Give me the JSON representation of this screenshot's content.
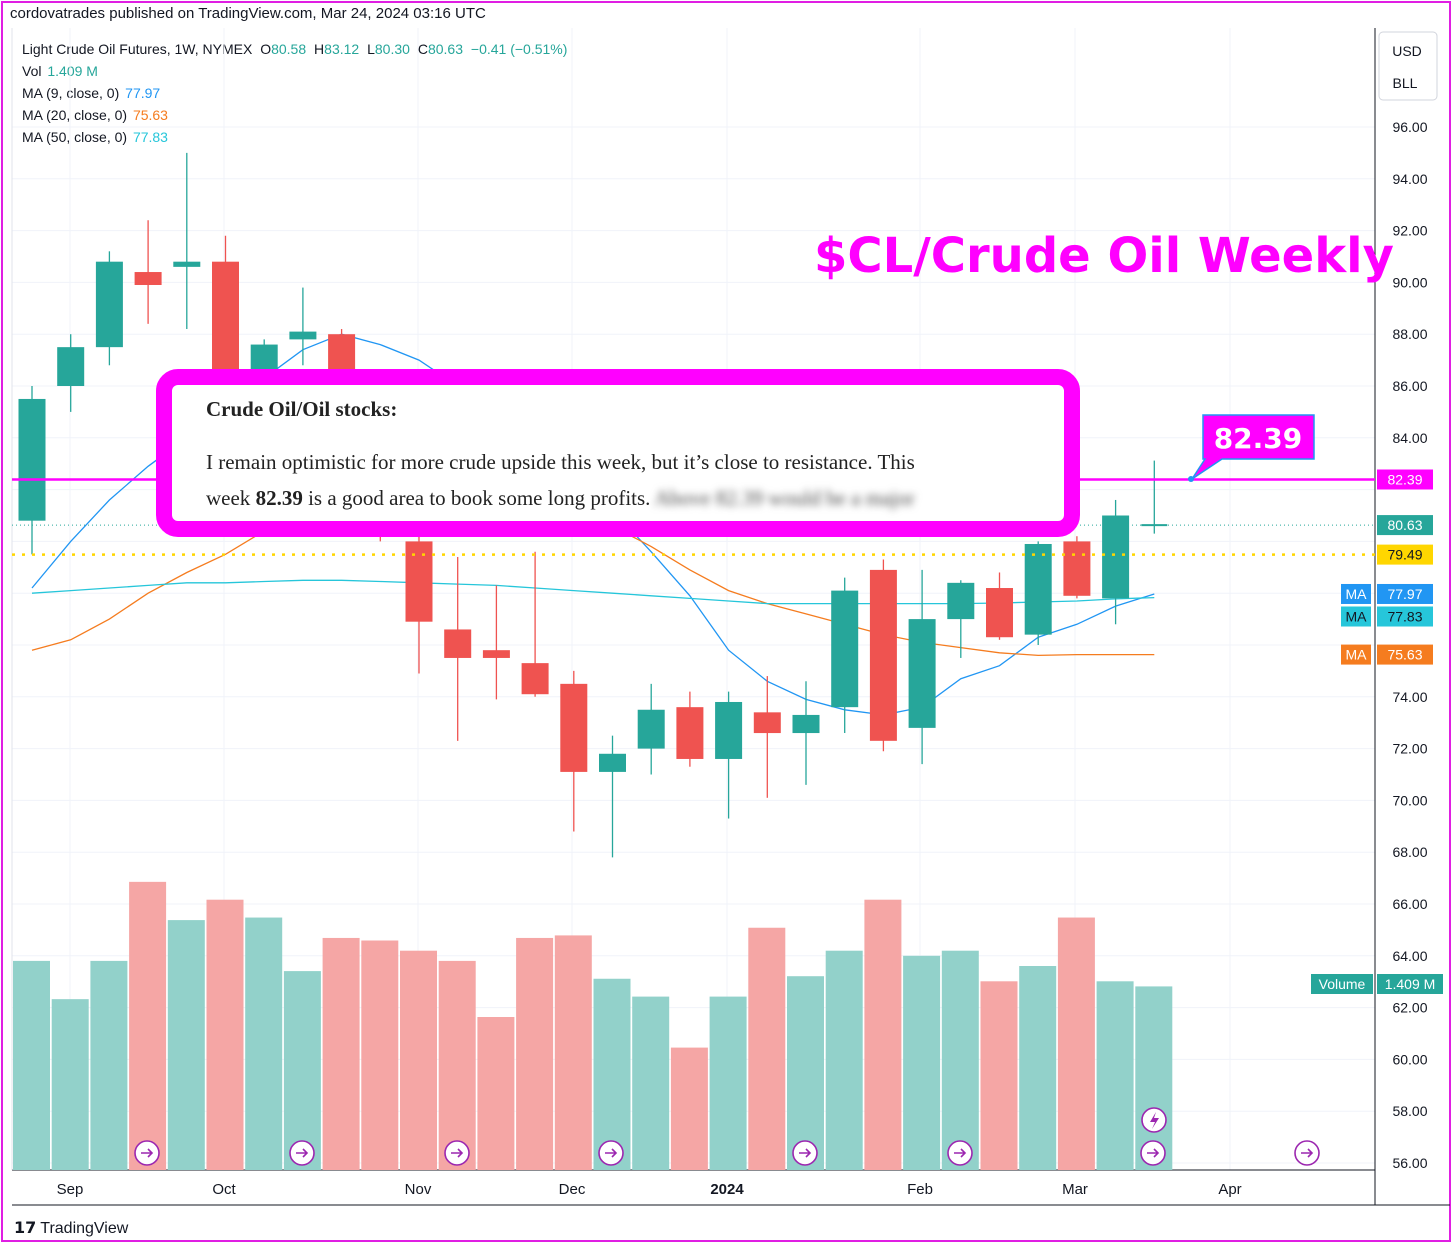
{
  "header": {
    "published": "cordovatrades published on TradingView.com, Mar 24, 2024 03:16 UTC"
  },
  "legend": {
    "symbol": "Light Crude Oil Futures, 1W, NYMEX",
    "o_label": "O",
    "o": "80.58",
    "h_label": "H",
    "h": "83.12",
    "l_label": "L",
    "l": "80.30",
    "c_label": "C",
    "c": "80.63",
    "chg": "−0.41 (−0.51%)",
    "vol_label": "Vol",
    "vol": "1.409 M",
    "ma9_label": "MA (9, close, 0)",
    "ma9": "77.97",
    "ma20_label": "MA (20, close, 0)",
    "ma20": "75.63",
    "ma50_label": "MA (50, close, 0)",
    "ma50": "77.83"
  },
  "annotation": {
    "big_title": "$CL/Crude Oil Weekly",
    "callout_title": "Crude Oil/Oil stocks:",
    "callout_body_1": "I remain optimistic for more crude upside this week, but it’s close to resistance.  This",
    "callout_body_2a": "week ",
    "callout_body_2b": "82.39",
    "callout_body_2c": " is a good area to book some long profits.",
    "callout_blurred": "Above 82.39 would be a major",
    "price_tag": "82.39"
  },
  "footer": {
    "logo": "TradingView"
  },
  "colors": {
    "up": "#26a69a",
    "down": "#ef5350",
    "vol_up": "#92d1ca",
    "vol_down": "#f5a6a5",
    "ma9": "#2196f3",
    "ma20": "#f57c1f",
    "ma50": "#26c6da",
    "magenta": "#ff00ff",
    "yellow": "#ffd600"
  },
  "chart_data": {
    "type": "candlestick",
    "title": "$CL/Crude Oil Weekly",
    "symbol": "Light Crude Oil Futures, 1W, NYMEX",
    "currency": "USD",
    "unit": "BLL",
    "ylim": [
      55.5,
      97.5
    ],
    "y_ticks": [
      "96.00",
      "94.00",
      "92.00",
      "90.00",
      "88.00",
      "86.00",
      "84.00",
      "74.00",
      "72.00",
      "70.00",
      "68.00",
      "66.00",
      "64.00",
      "62.00",
      "60.00",
      "58.00",
      "56.00"
    ],
    "x_labels": [
      "Sep",
      "Oct",
      "Nov",
      "Dec",
      "2024",
      "Feb",
      "Mar",
      "Apr"
    ],
    "candles": [
      {
        "o": 80.8,
        "h": 86.0,
        "l": 79.5,
        "c": 85.5
      },
      {
        "o": 86.0,
        "h": 88.0,
        "l": 85.0,
        "c": 87.5
      },
      {
        "o": 87.5,
        "h": 91.2,
        "l": 86.8,
        "c": 90.8
      },
      {
        "o": 90.4,
        "h": 92.4,
        "l": 88.4,
        "c": 89.9
      },
      {
        "o": 90.6,
        "h": 95.0,
        "l": 88.2,
        "c": 90.8
      },
      {
        "o": 90.8,
        "h": 91.8,
        "l": 84.5,
        "c": 84.6
      },
      {
        "o": 84.8,
        "h": 87.8,
        "l": 84.5,
        "c": 87.6
      },
      {
        "o": 87.8,
        "h": 89.8,
        "l": 86.8,
        "c": 88.1
      },
      {
        "o": 88.0,
        "h": 88.2,
        "l": 84.0,
        "c": 84.5
      },
      {
        "o": 83.0,
        "h": 83.5,
        "l": 80.0,
        "c": 80.5
      },
      {
        "o": 80.0,
        "h": 80.5,
        "l": 74.9,
        "c": 76.9
      },
      {
        "o": 76.6,
        "h": 79.4,
        "l": 72.3,
        "c": 75.5
      },
      {
        "o": 75.8,
        "h": 78.3,
        "l": 73.9,
        "c": 75.5
      },
      {
        "o": 75.3,
        "h": 79.6,
        "l": 74.0,
        "c": 74.1
      },
      {
        "o": 74.5,
        "h": 75.0,
        "l": 68.8,
        "c": 71.1
      },
      {
        "o": 71.1,
        "h": 72.5,
        "l": 67.8,
        "c": 71.8
      },
      {
        "o": 72.0,
        "h": 74.5,
        "l": 71.0,
        "c": 73.5
      },
      {
        "o": 73.6,
        "h": 74.2,
        "l": 71.3,
        "c": 71.6
      },
      {
        "o": 71.6,
        "h": 74.2,
        "l": 69.3,
        "c": 73.8
      },
      {
        "o": 73.4,
        "h": 74.8,
        "l": 70.1,
        "c": 72.6
      },
      {
        "o": 72.6,
        "h": 74.6,
        "l": 70.6,
        "c": 73.3
      },
      {
        "o": 73.6,
        "h": 78.6,
        "l": 72.6,
        "c": 78.1
      },
      {
        "o": 78.9,
        "h": 79.3,
        "l": 71.9,
        "c": 72.3
      },
      {
        "o": 72.8,
        "h": 78.9,
        "l": 71.4,
        "c": 77.0
      },
      {
        "o": 77.0,
        "h": 78.5,
        "l": 75.5,
        "c": 78.4
      },
      {
        "o": 78.2,
        "h": 78.8,
        "l": 76.2,
        "c": 76.3
      },
      {
        "o": 76.4,
        "h": 80.0,
        "l": 76.0,
        "c": 79.9
      },
      {
        "o": 80.0,
        "h": 80.2,
        "l": 77.8,
        "c": 77.9
      },
      {
        "o": 77.8,
        "h": 81.6,
        "l": 76.8,
        "c": 81.0
      },
      {
        "o": 80.58,
        "h": 83.12,
        "l": 80.3,
        "c": 80.63
      }
    ],
    "volume_ratio": [
      0.82,
      0.67,
      0.82,
      1.13,
      0.98,
      1.06,
      0.99,
      0.78,
      0.91,
      0.9,
      0.86,
      0.82,
      0.6,
      0.91,
      0.92,
      0.75,
      0.68,
      0.48,
      0.68,
      0.95,
      0.76,
      0.86,
      1.06,
      0.84,
      0.86,
      0.74,
      0.8,
      0.99,
      0.74,
      0.72
    ],
    "ma_series": [
      {
        "name": "MA (9, close, 0)",
        "last": 77.97,
        "values": [
          78.2,
          80.0,
          81.6,
          82.9,
          84.0,
          85.2,
          86.3,
          87.4,
          88.0,
          87.6,
          87.0,
          86.0,
          85.2,
          84.0,
          82.8,
          81.2,
          79.6,
          77.9,
          75.8,
          74.6,
          73.9,
          73.5,
          73.3,
          73.6,
          74.7,
          75.2,
          76.3,
          76.8,
          77.5,
          77.97
        ]
      },
      {
        "name": "MA (20, close, 0)",
        "last": 75.63,
        "values": [
          75.8,
          76.2,
          77.0,
          78.0,
          78.8,
          79.5,
          80.4,
          81.2,
          81.8,
          82.3,
          82.4,
          82.2,
          82.1,
          81.8,
          81.4,
          80.6,
          79.8,
          78.9,
          78.1,
          77.6,
          77.2,
          76.8,
          76.4,
          76.1,
          75.9,
          75.7,
          75.6,
          75.63,
          75.63,
          75.63
        ]
      },
      {
        "name": "MA (50, close, 0)",
        "last": 77.83,
        "values": [
          78.0,
          78.1,
          78.2,
          78.3,
          78.4,
          78.4,
          78.45,
          78.5,
          78.5,
          78.45,
          78.4,
          78.35,
          78.3,
          78.2,
          78.1,
          78.0,
          77.9,
          77.8,
          77.7,
          77.6,
          77.6,
          77.6,
          77.6,
          77.6,
          77.6,
          77.62,
          77.66,
          77.7,
          77.78,
          77.83
        ]
      }
    ],
    "horizontal_lines": [
      {
        "label": "82.39",
        "value": 82.39,
        "style": "solid",
        "color": "#ff00ff"
      },
      {
        "label": "79.49",
        "value": 79.49,
        "style": "dotted",
        "color": "#ffd600"
      }
    ],
    "last_price": "80.63",
    "price_labels": {
      "resistance": "82.39",
      "dotted": "79.49",
      "last": "80.63",
      "ma_tag": "MA",
      "ma9": "77.97",
      "ma50": "77.83",
      "ma20": "75.63",
      "volume_tag": "Volume",
      "volume": "1.409 M"
    },
    "currency_label": "USD",
    "unit_label": "BLL"
  }
}
